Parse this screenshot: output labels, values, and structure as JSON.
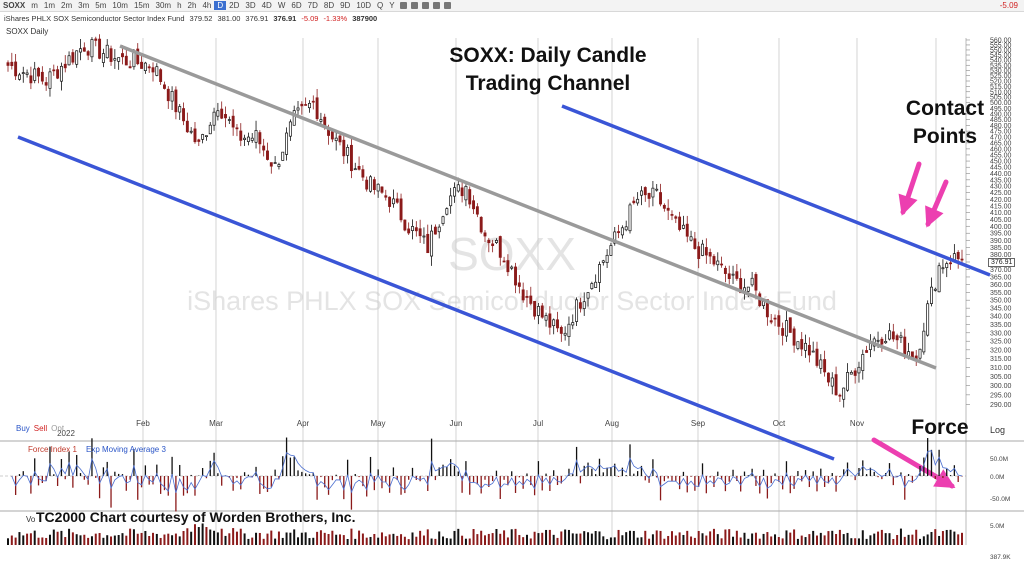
{
  "toolbar": {
    "symbol": "SOXX",
    "intervals": [
      "m",
      "1m",
      "2m",
      "3m",
      "5m",
      "10m",
      "15m",
      "30m",
      "h",
      "2h",
      "4h",
      "D",
      "2D",
      "3D",
      "4D",
      "W",
      "6D",
      "7D",
      "8D",
      "9D",
      "10D",
      "Q",
      "Y"
    ],
    "active_interval": "D",
    "last_change": "-5.09"
  },
  "quote": {
    "name": "iShares PHLX SOX Semiconductor Sector Index Fund",
    "open": "379.52",
    "high": "381.00",
    "low": "376.91",
    "close": "376.91",
    "change": "-5.09",
    "change_pct": "-1.33%",
    "volume": "387900"
  },
  "panes": {
    "price_label": "SOXX Daily",
    "force_label": "Force Index 1",
    "ema_label": "Exp Moving Average 3",
    "volume_label": "Vo",
    "log_label": "Log"
  },
  "trading_buttons": {
    "buy": "Buy",
    "sell": "Sell",
    "opt": "Opt"
  },
  "watermark": {
    "symbol": "SOXX",
    "name": "iShares PHLX SOX Semiconductor Sector Index Fund"
  },
  "annotations": {
    "title_line1": "SOXX:  Daily Candle",
    "title_line2": "Trading Channel",
    "contact_line1": "Contact",
    "contact_line2": "Points",
    "force": "Force",
    "credit": "TC2000 Chart courtesy of Worden Brothers, Inc."
  },
  "colors": {
    "up_candle": "#111111",
    "down_candle": "#8b1a1a",
    "channel_blue": "#3a55d6",
    "channel_gray": "#9a9a9a",
    "arrow_pink": "#ec3fb0",
    "ema_blue": "#4a6ed0",
    "grid": "#c9c9c9"
  },
  "chart_data": {
    "type": "candlestick",
    "symbol": "SOXX",
    "interval": "Daily",
    "year_label": "2022",
    "months": [
      "Feb",
      "Mar",
      "Apr",
      "May",
      "Jun",
      "Jul",
      "Aug",
      "Sep",
      "Oct",
      "Nov"
    ],
    "y_ticks": [
      290,
      295,
      300,
      305,
      310,
      315,
      320,
      325,
      330,
      335,
      340,
      345,
      350,
      355,
      360,
      365,
      370,
      375,
      380,
      385,
      390,
      395,
      400,
      405,
      410,
      415,
      420,
      425,
      430,
      435,
      440,
      445,
      450,
      455,
      460,
      465,
      470,
      475,
      480,
      485,
      490,
      495,
      500,
      505,
      510,
      515,
      520,
      525,
      530,
      535,
      540,
      545,
      550,
      555,
      560
    ],
    "ylim": [
      286,
      562
    ],
    "log_scale": true,
    "last_price": "376.91",
    "close_path": [
      [
        0,
        535
      ],
      [
        10,
        520
      ],
      [
        20,
        555
      ],
      [
        30,
        540
      ],
      [
        38,
        535
      ],
      [
        45,
        490
      ],
      [
        50,
        462
      ],
      [
        55,
        500
      ],
      [
        60,
        470
      ],
      [
        65,
        470
      ],
      [
        70,
        445
      ],
      [
        75,
        485
      ],
      [
        80,
        500
      ],
      [
        85,
        470
      ],
      [
        90,
        450
      ],
      [
        95,
        430
      ],
      [
        100,
        420
      ],
      [
        105,
        400
      ],
      [
        110,
        385
      ],
      [
        115,
        420
      ],
      [
        120,
        430
      ],
      [
        125,
        395
      ],
      [
        130,
        380
      ],
      [
        135,
        355
      ],
      [
        140,
        340
      ],
      [
        145,
        328
      ],
      [
        150,
        350
      ],
      [
        155,
        372
      ],
      [
        160,
        395
      ],
      [
        165,
        420
      ],
      [
        170,
        422
      ],
      [
        175,
        400
      ],
      [
        180,
        385
      ],
      [
        185,
        375
      ],
      [
        190,
        362
      ],
      [
        195,
        358
      ],
      [
        200,
        340
      ],
      [
        205,
        330
      ],
      [
        210,
        320
      ],
      [
        215,
        303
      ],
      [
        218,
        296
      ],
      [
        222,
        310
      ],
      [
        226,
        325
      ],
      [
        230,
        330
      ],
      [
        235,
        322
      ],
      [
        238,
        316
      ],
      [
        241,
        345
      ],
      [
        244,
        372
      ],
      [
        247,
        378
      ],
      [
        250,
        376.91
      ]
    ],
    "force_index": {
      "ylim": [
        -70,
        70
      ],
      "ticks": [
        "50.0M",
        "0.0M",
        "-50.0M"
      ]
    },
    "volume": {
      "ylim": [
        0,
        6
      ],
      "ticks": [
        "5.0M"
      ],
      "last": "387.9K"
    }
  }
}
